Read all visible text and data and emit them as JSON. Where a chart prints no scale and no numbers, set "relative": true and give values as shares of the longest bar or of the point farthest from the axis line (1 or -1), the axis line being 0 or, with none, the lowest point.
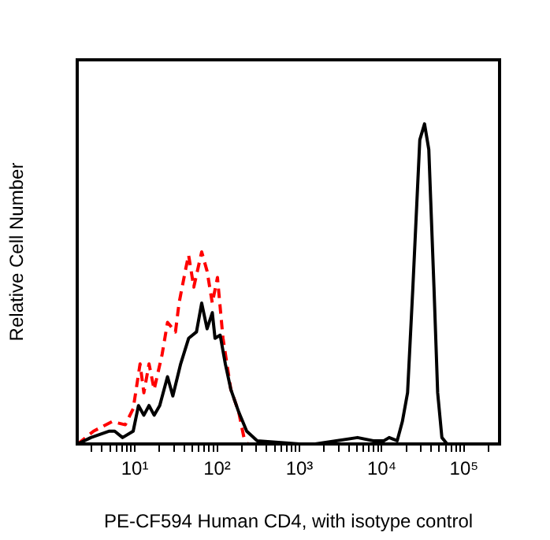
{
  "chart_data": {
    "type": "line",
    "relative": true,
    "log": "x",
    "xlabel": "PE-CF594 Human CD4, with isotype control",
    "ylabel": "Relative Cell Number",
    "xlim": [
      2,
      270000
    ],
    "xticks": [
      {
        "value": 3,
        "label": null
      },
      {
        "value": 4,
        "label": null
      },
      {
        "value": 5,
        "label": null
      },
      {
        "value": 6,
        "label": null
      },
      {
        "value": 7,
        "label": null
      },
      {
        "value": 8,
        "label": null
      },
      {
        "value": 9,
        "label": null
      },
      {
        "value": 10,
        "label": "10¹"
      },
      {
        "value": 20,
        "label": null
      },
      {
        "value": 30,
        "label": null
      },
      {
        "value": 40,
        "label": null
      },
      {
        "value": 50,
        "label": null
      },
      {
        "value": 60,
        "label": null
      },
      {
        "value": 70,
        "label": null
      },
      {
        "value": 80,
        "label": null
      },
      {
        "value": 90,
        "label": null
      },
      {
        "value": 100,
        "label": "10²"
      },
      {
        "value": 200,
        "label": null
      },
      {
        "value": 300,
        "label": null
      },
      {
        "value": 400,
        "label": null
      },
      {
        "value": 500,
        "label": null
      },
      {
        "value": 600,
        "label": null
      },
      {
        "value": 700,
        "label": null
      },
      {
        "value": 800,
        "label": null
      },
      {
        "value": 900,
        "label": null
      },
      {
        "value": 1000,
        "label": "10³"
      },
      {
        "value": 2000,
        "label": null
      },
      {
        "value": 3000,
        "label": null
      },
      {
        "value": 4000,
        "label": null
      },
      {
        "value": 5000,
        "label": null
      },
      {
        "value": 6000,
        "label": null
      },
      {
        "value": 7000,
        "label": null
      },
      {
        "value": 8000,
        "label": null
      },
      {
        "value": 9000,
        "label": null
      },
      {
        "value": 10000,
        "label": "10⁴"
      },
      {
        "value": 20000,
        "label": null
      },
      {
        "value": 30000,
        "label": null
      },
      {
        "value": 40000,
        "label": null
      },
      {
        "value": 50000,
        "label": null
      },
      {
        "value": 60000,
        "label": null
      },
      {
        "value": 70000,
        "label": null
      },
      {
        "value": 80000,
        "label": null
      },
      {
        "value": 90000,
        "label": null
      },
      {
        "value": 100000,
        "label": "10⁵"
      },
      {
        "value": 200000,
        "label": null
      }
    ],
    "grid": false,
    "legend": false,
    "marker": "none",
    "series": [
      {
        "color": "#000000",
        "line_style": "solid",
        "x": [
          2.03,
          2.93,
          4.92,
          5.7,
          7.11,
          9.57,
          11.1,
          12.9,
          14.9,
          17.2,
          20.1,
          25,
          29,
          36.1,
          45.1,
          56.2,
          65,
          75.6,
          87.5,
          94.4,
          109,
          126,
          147,
          183,
          229,
          307,
          1000,
          1556,
          2806,
          5080,
          7910,
          10600,
          12300,
          15400,
          17800,
          20600,
          23900,
          29000,
          33100,
          37300,
          43100,
          47800,
          53800,
          62200,
          270000
        ],
        "values": [
          0,
          0.02,
          0.04,
          0.04,
          0.02,
          0.04,
          0.12,
          0.09,
          0.12,
          0.09,
          0.12,
          0.21,
          0.15,
          0.25,
          0.33,
          0.35,
          0.44,
          0.36,
          0.41,
          0.33,
          0.34,
          0.25,
          0.17,
          0.1,
          0.04,
          0.01,
          0,
          0,
          0.01,
          0.02,
          0.01,
          0.01,
          0.02,
          0.01,
          0.07,
          0.16,
          0.49,
          0.95,
          1,
          0.92,
          0.49,
          0.16,
          0.02,
          0,
          0
        ]
      },
      {
        "color": "#ff0000",
        "line_style": "dashed",
        "x": [
          2.03,
          3.16,
          5.31,
          7.67,
          9.57,
          11.6,
          12.9,
          14.9,
          17.2,
          21.5,
          25,
          31.2,
          34.5,
          41.8,
          45.1,
          52.1,
          65,
          75.6,
          87.5,
          101,
          118,
          147,
          183,
          212,
          235
        ],
        "values": [
          0,
          0.04,
          0.07,
          0.06,
          0.11,
          0.25,
          0.16,
          0.25,
          0.17,
          0.28,
          0.38,
          0.35,
          0.44,
          0.55,
          0.59,
          0.49,
          0.6,
          0.54,
          0.44,
          0.52,
          0.33,
          0.17,
          0.1,
          0.02,
          0
        ]
      }
    ]
  }
}
